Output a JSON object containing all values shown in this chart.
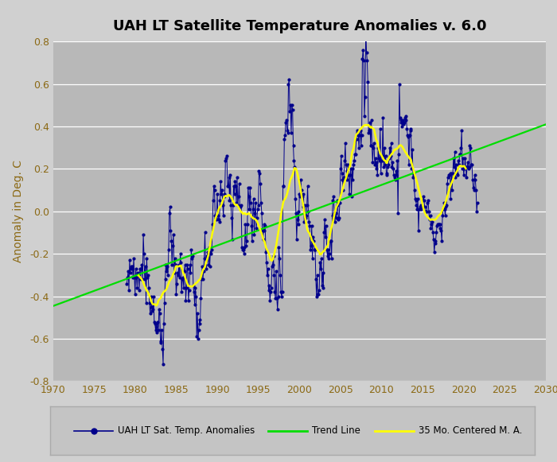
{
  "title": "UAH LT Satellite Temperature Anomalies v. 6.0",
  "ylabel": "Anomaly in Deg. C",
  "xlim": [
    1970,
    2030
  ],
  "ylim": [
    -0.8,
    0.8
  ],
  "xticks": [
    1970,
    1975,
    1980,
    1985,
    1990,
    1995,
    2000,
    2005,
    2010,
    2015,
    2020,
    2025,
    2030
  ],
  "yticks": [
    -0.8,
    -0.6,
    -0.4,
    -0.2,
    0.0,
    0.2,
    0.4,
    0.6,
    0.8
  ],
  "bg_color": "#b8b8b8",
  "fig_bg_color": "#d0d0d0",
  "data_color": "#00008b",
  "trend_color": "#00dd00",
  "ma_color": "#ffff00",
  "ma_window": 35,
  "trend_x": [
    1970,
    2030
  ],
  "trend_y": [
    -0.5,
    0.34
  ],
  "monthly_anomalies": [
    -0.34,
    -0.31,
    -0.28,
    -0.37,
    -0.23,
    -0.29,
    -0.26,
    -0.27,
    -0.26,
    -0.31,
    -0.22,
    -0.31,
    -0.39,
    -0.27,
    -0.31,
    -0.36,
    -0.29,
    -0.3,
    -0.37,
    -0.27,
    -0.32,
    -0.27,
    -0.25,
    -0.32,
    -0.11,
    -0.2,
    -0.32,
    -0.26,
    -0.43,
    -0.22,
    -0.31,
    -0.3,
    -0.36,
    -0.43,
    -0.48,
    -0.45,
    -0.4,
    -0.47,
    -0.46,
    -0.4,
    -0.52,
    -0.53,
    -0.56,
    -0.53,
    -0.57,
    -0.52,
    -0.56,
    -0.46,
    -0.48,
    -0.61,
    -0.62,
    -0.56,
    -0.65,
    -0.72,
    -0.53,
    -0.43,
    -0.32,
    -0.25,
    -0.28,
    -0.26,
    -0.3,
    -0.18,
    -0.01,
    0.02,
    -0.09,
    -0.14,
    -0.25,
    -0.16,
    -0.11,
    -0.29,
    -0.22,
    -0.25,
    -0.39,
    -0.34,
    -0.29,
    -0.3,
    -0.25,
    -0.31,
    -0.2,
    -0.24,
    -0.38,
    -0.32,
    -0.31,
    -0.36,
    -0.28,
    -0.25,
    -0.42,
    -0.36,
    -0.25,
    -0.27,
    -0.42,
    -0.37,
    -0.25,
    -0.29,
    -0.18,
    -0.22,
    -0.21,
    -0.35,
    -0.38,
    -0.44,
    -0.36,
    -0.4,
    -0.59,
    -0.48,
    -0.6,
    -0.56,
    -0.51,
    -0.53,
    -0.41,
    -0.32,
    -0.26,
    -0.32,
    -0.28,
    -0.22,
    -0.1,
    -0.25,
    -0.27,
    -0.21,
    -0.19,
    -0.25,
    -0.17,
    -0.26,
    -0.19,
    -0.2,
    -0.18,
    -0.06,
    0.05,
    0.12,
    0.1,
    -0.02,
    -0.03,
    -0.04,
    0.08,
    -0.02,
    -0.04,
    -0.05,
    0.05,
    0.14,
    0.08,
    0.1,
    0.03,
    -0.02,
    0.08,
    0.07,
    0.24,
    0.25,
    0.26,
    0.12,
    0.12,
    0.16,
    0.05,
    0.17,
    0.03,
    -0.03,
    -0.13,
    0.03,
    0.12,
    0.08,
    0.14,
    0.12,
    0.04,
    0.16,
    0.03,
    0.07,
    0.13,
    0.02,
    0.02,
    0.03,
    -0.17,
    -0.18,
    -0.18,
    -0.2,
    -0.17,
    -0.06,
    -0.16,
    -0.14,
    -0.06,
    0.11,
    0.07,
    0.01,
    0.11,
    0.04,
    -0.07,
    -0.14,
    0.01,
    0.06,
    -0.11,
    -0.01,
    0.04,
    -0.08,
    -0.03,
    0.01,
    0.03,
    0.19,
    0.18,
    0.13,
    0.04,
    -0.01,
    -0.09,
    -0.13,
    -0.06,
    -0.09,
    -0.07,
    -0.19,
    -0.24,
    -0.3,
    -0.27,
    -0.37,
    -0.35,
    -0.42,
    -0.38,
    -0.36,
    -0.26,
    -0.25,
    -0.21,
    -0.3,
    -0.38,
    -0.41,
    -0.28,
    -0.41,
    -0.46,
    -0.4,
    -0.17,
    -0.22,
    -0.3,
    -0.38,
    -0.4,
    -0.38,
    0.12,
    0.12,
    0.34,
    0.36,
    0.42,
    0.43,
    0.38,
    0.37,
    0.6,
    0.62,
    0.47,
    0.5,
    0.37,
    0.5,
    0.48,
    0.31,
    0.24,
    0.21,
    0.06,
    -0.01,
    -0.13,
    -0.04,
    0.0,
    -0.06,
    0.08,
    0.07,
    0.15,
    0.1,
    0.07,
    0.02,
    0.08,
    -0.05,
    0.03,
    -0.03,
    -0.02,
    0.03,
    0.12,
    0.0,
    -0.05,
    -0.07,
    -0.18,
    -0.16,
    -0.07,
    -0.22,
    -0.12,
    -0.14,
    -0.18,
    -0.18,
    -0.32,
    -0.4,
    -0.3,
    -0.39,
    -0.39,
    -0.37,
    -0.24,
    -0.27,
    -0.22,
    -0.35,
    -0.29,
    -0.36,
    -0.1,
    -0.04,
    -0.12,
    -0.07,
    -0.18,
    -0.21,
    -0.18,
    -0.22,
    -0.2,
    -0.14,
    -0.14,
    -0.22,
    -0.02,
    0.05,
    0.07,
    -0.01,
    -0.05,
    -0.01,
    -0.03,
    0.05,
    0.03,
    -0.04,
    -0.03,
    0.04,
    0.2,
    0.26,
    0.18,
    0.15,
    0.1,
    0.16,
    0.24,
    0.32,
    0.22,
    0.19,
    0.15,
    0.22,
    0.17,
    0.08,
    0.17,
    0.2,
    0.07,
    0.2,
    0.15,
    0.22,
    0.24,
    0.27,
    0.27,
    0.34,
    0.38,
    0.37,
    0.36,
    0.3,
    0.36,
    0.38,
    0.31,
    0.36,
    0.72,
    0.76,
    0.71,
    0.45,
    0.54,
    0.86,
    0.75,
    0.71,
    0.61,
    0.37,
    0.38,
    0.42,
    0.31,
    0.43,
    0.31,
    0.23,
    0.3,
    0.32,
    0.22,
    0.25,
    0.2,
    0.23,
    0.17,
    0.3,
    0.25,
    0.24,
    0.39,
    0.18,
    0.24,
    0.26,
    0.44,
    0.21,
    0.3,
    0.22,
    0.26,
    0.17,
    0.18,
    0.21,
    0.22,
    0.25,
    0.3,
    0.26,
    0.32,
    0.21,
    0.23,
    0.2,
    0.17,
    0.16,
    0.15,
    0.19,
    0.17,
    0.24,
    -0.01,
    0.27,
    0.6,
    0.44,
    0.42,
    0.43,
    0.4,
    0.43,
    0.41,
    0.42,
    0.44,
    0.43,
    0.45,
    0.39,
    0.36,
    0.35,
    0.22,
    0.36,
    0.39,
    0.38,
    0.2,
    0.29,
    0.16,
    0.18,
    0.1,
    0.06,
    0.05,
    0.03,
    0.01,
    0.06,
    -0.09,
    0.01,
    0.02,
    0.01,
    0.03,
    0.02,
    0.02,
    0.07,
    0.05,
    0.02,
    0.0,
    0.0,
    0.0,
    0.04,
    0.05,
    0.0,
    -0.04,
    -0.02,
    -0.08,
    -0.06,
    -0.05,
    -0.1,
    -0.13,
    -0.19,
    -0.15,
    -0.14,
    -0.1,
    -0.07,
    -0.06,
    -0.06,
    -0.06,
    -0.06,
    -0.08,
    -0.09,
    -0.14,
    -0.02,
    0.01,
    0.04,
    0.01,
    -0.02,
    0.02,
    0.03,
    0.13,
    0.16,
    0.17,
    0.17,
    0.18,
    0.06,
    0.18,
    0.1,
    0.18,
    0.25,
    0.21,
    0.28,
    0.16,
    0.22,
    0.18,
    0.17,
    0.24,
    0.22,
    0.27,
    0.27,
    0.3,
    0.38,
    0.2,
    0.25,
    0.17,
    0.2,
    0.25,
    0.21,
    0.16,
    0.21,
    0.23,
    0.2,
    0.21,
    0.31,
    0.3,
    0.22,
    0.22,
    0.15,
    0.11,
    0.1,
    0.17,
    0.15,
    0.1,
    0.0,
    0.04
  ],
  "start_year": 1979,
  "start_month": 1
}
